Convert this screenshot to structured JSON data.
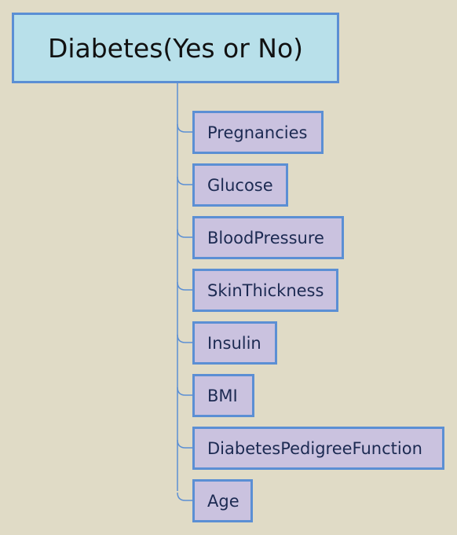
{
  "root": {
    "label": "Diabetes(Yes or No)"
  },
  "children": [
    {
      "label": "Pregnancies"
    },
    {
      "label": "Glucose"
    },
    {
      "label": "BloodPressure"
    },
    {
      "label": "SkinThickness"
    },
    {
      "label": "Insulin"
    },
    {
      "label": "BMI"
    },
    {
      "label": "DiabetesPedigreeFunction"
    },
    {
      "label": "Age"
    }
  ],
  "colors": {
    "background": "#e0dbc6",
    "root_fill": "#b8e0ea",
    "child_fill": "#cac2df",
    "border": "#5b8fd4",
    "connector": "#5b8fd4"
  }
}
